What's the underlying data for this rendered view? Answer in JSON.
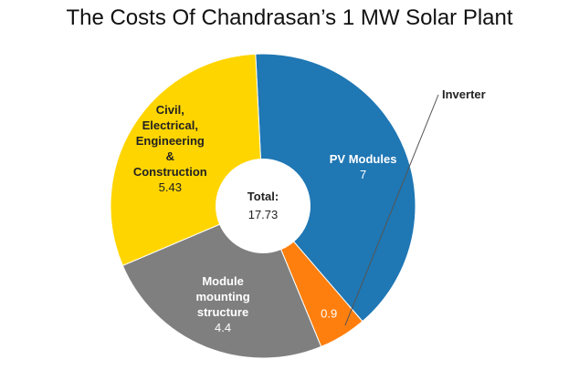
{
  "chart_data": {
    "type": "pie",
    "title": "The Costs Of Chandrasan’s 1 MW Solar Plant",
    "center_label": "Total:",
    "center_value": "17.73",
    "slices": [
      {
        "name": "PV Modules",
        "value": 7,
        "value_label": "7",
        "color": "#1f77b4",
        "label_lines": [
          "PV Modules"
        ]
      },
      {
        "name": "Inverter",
        "value": 0.9,
        "value_label": "0.9",
        "color": "#ff7f0e",
        "label_lines": [
          "Inverter"
        ]
      },
      {
        "name": "Module mounting structure",
        "value": 4.4,
        "value_label": "4.4",
        "color": "#7f7f7f",
        "label_lines": [
          "Module",
          "mounting",
          "structure"
        ]
      },
      {
        "name": "Civil, Electrical, Engineering & Construction",
        "value": 5.43,
        "value_label": "5.43",
        "color": "#ffd500",
        "label_lines": [
          "Civil,",
          "Electrical,",
          "Engineering",
          "&",
          "Construction"
        ]
      }
    ]
  }
}
